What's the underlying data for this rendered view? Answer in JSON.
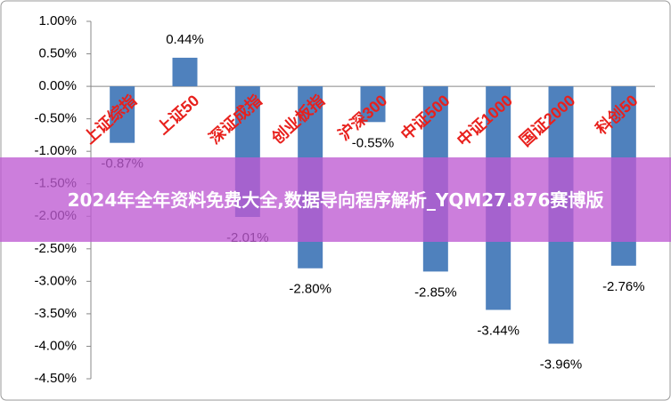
{
  "chart_data": {
    "type": "bar",
    "categories": [
      "上证综指",
      "上证50",
      "深证成指",
      "创业板指",
      "沪深300",
      "中证500",
      "中证1000",
      "国证2000",
      "科创50"
    ],
    "values": [
      -0.87,
      0.44,
      -2.01,
      -2.8,
      -0.55,
      -2.85,
      -3.44,
      -3.96,
      -2.76
    ],
    "value_labels": [
      "-0.87%",
      "0.44%",
      "-2.01%",
      "-2.80%",
      "-0.55%",
      "-2.85%",
      "-3.44%",
      "-3.96%",
      "-2.76%"
    ],
    "color": "#4f81bd",
    "category_label_color": "#e8201c",
    "ylim": [
      -4.5,
      1.0
    ],
    "yticks": [
      {
        "value": 1.0,
        "label": "1.00%"
      },
      {
        "value": 0.5,
        "label": "0.50%"
      },
      {
        "value": 0.0,
        "label": "0.00%"
      },
      {
        "value": -0.5,
        "label": "-0.50%"
      },
      {
        "value": -1.0,
        "label": "-1.00%"
      },
      {
        "value": -1.5,
        "label": "-1.50%"
      },
      {
        "value": -2.0,
        "label": "-2.00%"
      },
      {
        "value": -2.5,
        "label": "-2.50%"
      },
      {
        "value": -3.0,
        "label": "-3.00%"
      },
      {
        "value": -3.5,
        "label": "-3.50%"
      },
      {
        "value": -4.0,
        "label": "-4.00%"
      },
      {
        "value": -4.5,
        "label": "-4.50%"
      }
    ],
    "banner": "2024年全年资料免费大全,数据导向程序解析_YQM27.876赛博版"
  }
}
